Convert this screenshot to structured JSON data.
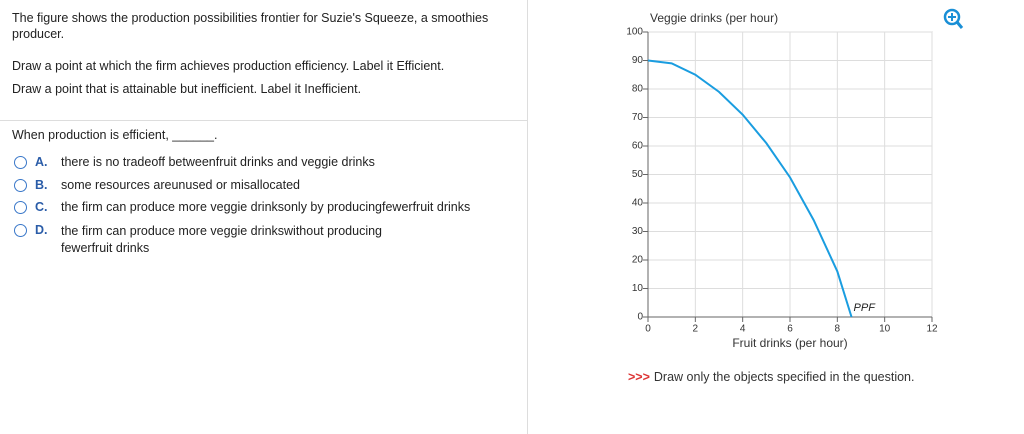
{
  "question": {
    "intro": "The figure shows the production possibilities frontier for Suzie's Squeeze, a smoothies producer.",
    "instructions": [
      "Draw a point at which the firm achieves production efficiency. Label it Efficient.",
      "Draw a point that is attainable but inefficient. Label it Inefficient."
    ],
    "prompt": "When production is efficient, ______.",
    "options": [
      {
        "letter": "A.",
        "text": "there is no tradeoff betweenfruit drinks and veggie drinks"
      },
      {
        "letter": "B.",
        "text": "some resources areunused or misallocated"
      },
      {
        "letter": "C.",
        "text": "the firm can produce more veggie drinksonly by producingfewerfruit drinks"
      },
      {
        "letter": "D.",
        "text": "the firm can produce more veggie drinkswithout producing fewerfruit drinks"
      }
    ]
  },
  "chart_data": {
    "type": "line",
    "x_label": "Fruit drinks (per hour)",
    "y_label": "Veggie drinks (per hour)",
    "x": [
      0,
      1,
      2,
      3,
      4,
      5,
      6,
      7,
      8,
      8.6
    ],
    "series": [
      {
        "name": "PPF",
        "color": "#1a9de0",
        "values": [
          90,
          89,
          85,
          79,
          71,
          61,
          49,
          34,
          16,
          0
        ]
      }
    ],
    "xlim": [
      0,
      12
    ],
    "xticks": [
      0,
      2,
      4,
      6,
      8,
      10,
      12
    ],
    "ylim": [
      0,
      100
    ],
    "yticks": [
      0,
      10,
      20,
      30,
      40,
      50,
      60,
      70,
      80,
      90,
      100
    ],
    "grid": true
  },
  "footer": {
    "marker": ">>>",
    "text": "Draw only the objects specified in the question."
  }
}
